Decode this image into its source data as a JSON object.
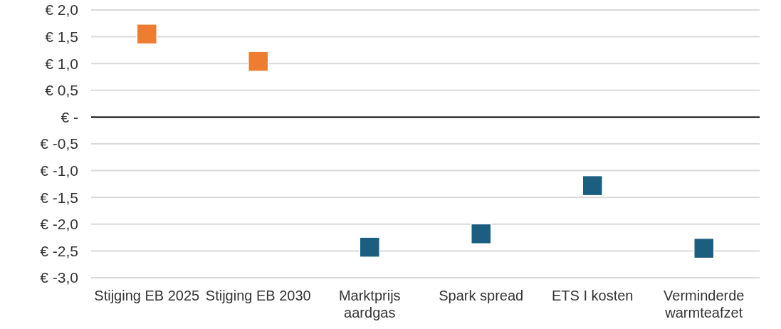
{
  "chart_data": {
    "type": "scatter",
    "categories": [
      "Stijging EB 2025",
      "Stijging EB 2030",
      "Marktprijs aardgas",
      "Spark spread",
      "ETS I kosten",
      "Verminderde warmteafzet"
    ],
    "values": [
      1.55,
      1.04,
      -2.43,
      -2.18,
      -1.28,
      -2.45
    ],
    "colors": [
      "#ed7d31",
      "#ed7d31",
      "#1b5e80",
      "#1b5e80",
      "#1b5e80",
      "#1b5e80"
    ],
    "ylim": [
      -3,
      2
    ],
    "yticks": [
      {
        "value": 2,
        "label": "€ 2,0"
      },
      {
        "value": 1.5,
        "label": "€ 1,5"
      },
      {
        "value": 1,
        "label": "€ 1,0"
      },
      {
        "value": 0.5,
        "label": "€ 0,5"
      },
      {
        "value": 0,
        "label": "€ -"
      },
      {
        "value": -0.5,
        "label": "€ -0,5"
      },
      {
        "value": -1,
        "label": "€ -1,0"
      },
      {
        "value": -1.5,
        "label": "€ -1,5"
      },
      {
        "value": -2,
        "label": "€ -2,0"
      },
      {
        "value": -2.5,
        "label": "€ -2,5"
      },
      {
        "value": -3,
        "label": "€ -3,0"
      }
    ],
    "grid": "y",
    "marker": "square"
  }
}
